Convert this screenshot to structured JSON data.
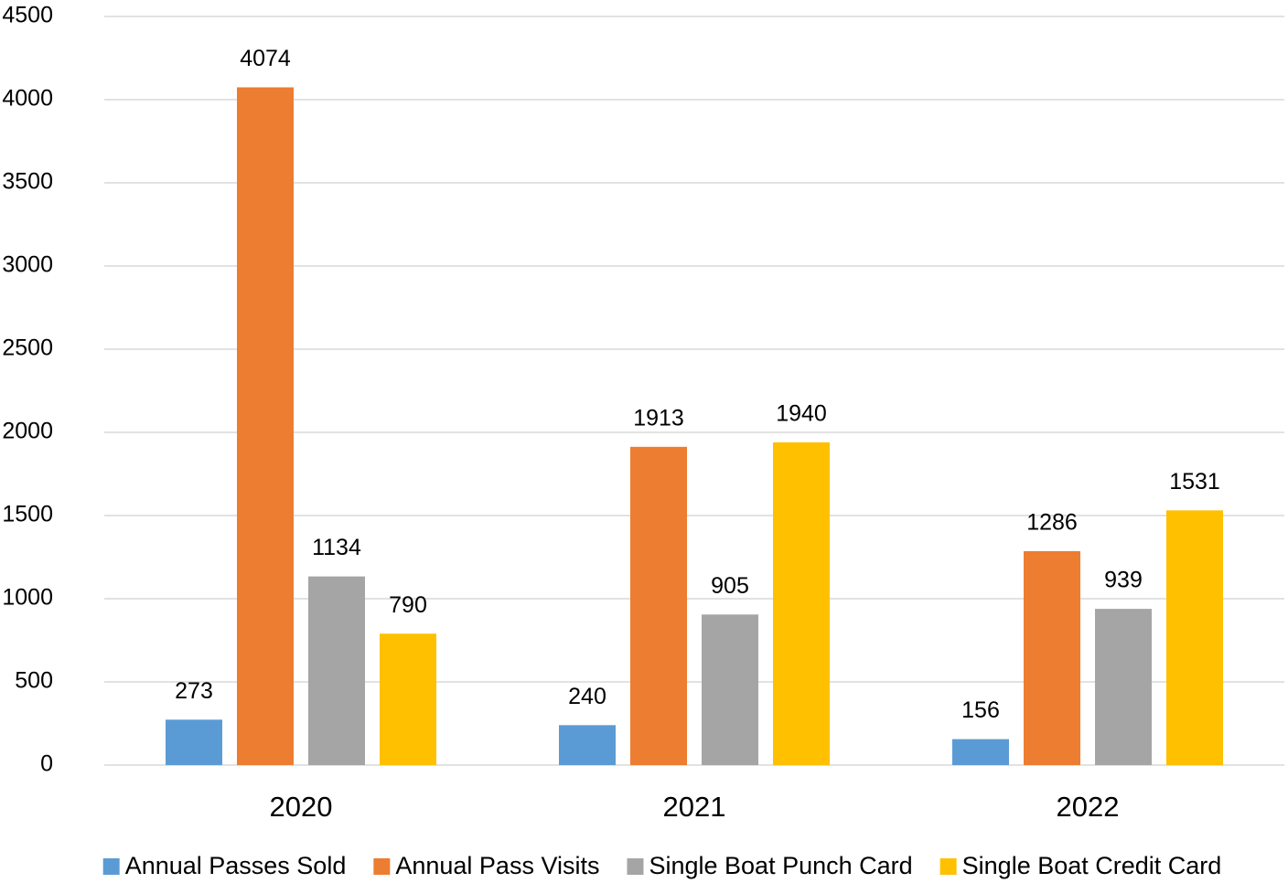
{
  "chart_data": {
    "type": "bar",
    "categories": [
      "2020",
      "2021",
      "2022"
    ],
    "series": [
      {
        "name": "Annual Passes Sold",
        "color": "#5b9bd5",
        "values": [
          273,
          240,
          156
        ]
      },
      {
        "name": "Annual Pass Visits",
        "color": "#ed7d31",
        "values": [
          4074,
          1913,
          1286
        ]
      },
      {
        "name": "Single Boat Punch Card",
        "color": "#a5a5a5",
        "values": [
          1134,
          905,
          939
        ]
      },
      {
        "name": "Single Boat Credit Card",
        "color": "#ffc000",
        "values": [
          790,
          1940,
          1531
        ]
      }
    ],
    "ylim": [
      0,
      4500
    ],
    "yticks": [
      0,
      500,
      1000,
      1500,
      2000,
      2500,
      3000,
      3500,
      4000,
      4500
    ],
    "grid": true,
    "legend": "bottom"
  }
}
